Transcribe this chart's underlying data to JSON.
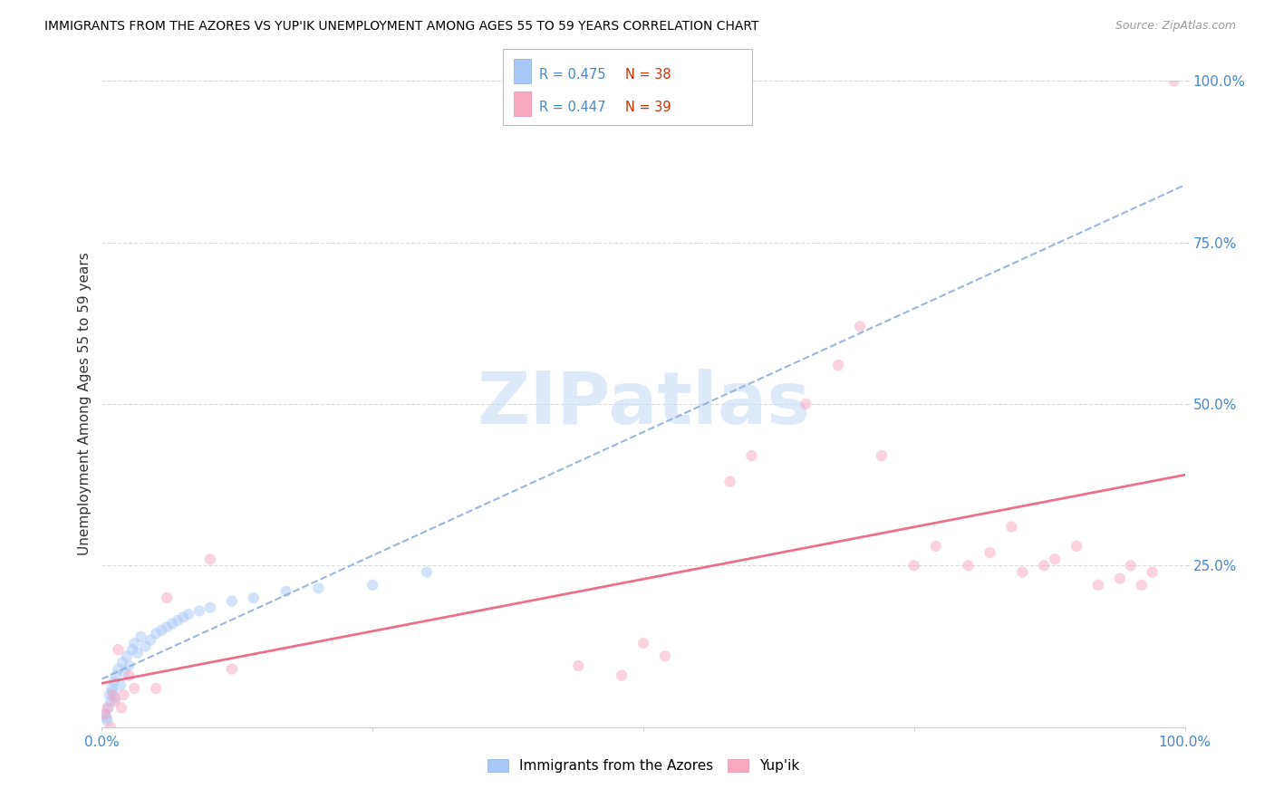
{
  "title": "IMMIGRANTS FROM THE AZORES VS YUP'IK UNEMPLOYMENT AMONG AGES 55 TO 59 YEARS CORRELATION CHART",
  "source": "Source: ZipAtlas.com",
  "ylabel": "Unemployment Among Ages 55 to 59 years",
  "xlim": [
    0,
    1.0
  ],
  "ylim": [
    0,
    1.0
  ],
  "xtick_values": [
    0,
    0.25,
    0.5,
    0.75,
    1.0
  ],
  "xtick_labels_show": [
    "0.0%",
    "",
    "",
    "",
    "100.0%"
  ],
  "ytick_values": [
    0.25,
    0.5,
    0.75,
    1.0
  ],
  "ytick_labels": [
    "25.0%",
    "50.0%",
    "75.0%",
    "100.0%"
  ],
  "background_color": "#ffffff",
  "grid_color": "#cccccc",
  "azores_x": [
    0.003,
    0.004,
    0.005,
    0.006,
    0.007,
    0.008,
    0.009,
    0.01,
    0.011,
    0.012,
    0.013,
    0.015,
    0.017,
    0.019,
    0.021,
    0.023,
    0.025,
    0.028,
    0.03,
    0.033,
    0.036,
    0.04,
    0.045,
    0.05,
    0.055,
    0.06,
    0.065,
    0.07,
    0.075,
    0.08,
    0.09,
    0.1,
    0.12,
    0.14,
    0.17,
    0.2,
    0.25,
    0.3
  ],
  "azores_y": [
    0.02,
    0.015,
    0.01,
    0.03,
    0.05,
    0.04,
    0.06,
    0.055,
    0.07,
    0.045,
    0.08,
    0.09,
    0.065,
    0.1,
    0.085,
    0.11,
    0.095,
    0.12,
    0.13,
    0.115,
    0.14,
    0.125,
    0.135,
    0.145,
    0.15,
    0.155,
    0.16,
    0.165,
    0.17,
    0.175,
    0.18,
    0.185,
    0.195,
    0.2,
    0.21,
    0.215,
    0.22,
    0.24
  ],
  "azores_color": "#a8c8f8",
  "azores_line_color": "#88aad8",
  "yupik_x": [
    0.003,
    0.005,
    0.008,
    0.01,
    0.012,
    0.015,
    0.018,
    0.02,
    0.025,
    0.03,
    0.05,
    0.06,
    0.1,
    0.12,
    0.44,
    0.48,
    0.5,
    0.52,
    0.58,
    0.6,
    0.65,
    0.68,
    0.7,
    0.72,
    0.75,
    0.77,
    0.8,
    0.82,
    0.84,
    0.85,
    0.87,
    0.88,
    0.9,
    0.92,
    0.94,
    0.95,
    0.96,
    0.97,
    0.99
  ],
  "yupik_y": [
    0.02,
    0.03,
    0.0,
    0.05,
    0.04,
    0.12,
    0.03,
    0.05,
    0.08,
    0.06,
    0.06,
    0.2,
    0.26,
    0.09,
    0.095,
    0.08,
    0.13,
    0.11,
    0.38,
    0.42,
    0.5,
    0.56,
    0.62,
    0.42,
    0.25,
    0.28,
    0.25,
    0.27,
    0.31,
    0.24,
    0.25,
    0.26,
    0.28,
    0.22,
    0.23,
    0.25,
    0.22,
    0.24,
    1.0
  ],
  "yupik_color": "#f8a8c0",
  "yupik_line_color": "#e86080",
  "marker_size": 80,
  "marker_alpha": 0.5,
  "legend_R1": "R = 0.475",
  "legend_N1": "N = 38",
  "legend_R2": "R = 0.447",
  "legend_N2": "N = 39",
  "legend_color_blue": "#a8c8f8",
  "legend_color_pink": "#f8a8c0",
  "legend_text_R_color": "#4488cc",
  "legend_text_N_color": "#cc3300",
  "watermark_text": "ZIPatlas",
  "watermark_color": "#c8ddf8",
  "source_color": "#999999",
  "ylabel_color": "#333333",
  "tick_label_color": "#4488cc"
}
